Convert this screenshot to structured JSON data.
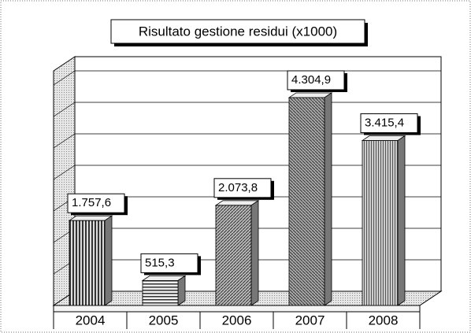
{
  "chart_data": {
    "type": "bar3d",
    "title": "Risultato gestione residui (x1000)",
    "categories": [
      "2004",
      "2005",
      "2006",
      "2007",
      "2008"
    ],
    "values": [
      1757.6,
      515.3,
      2073.8,
      4304.9,
      3415.4
    ],
    "value_labels": [
      "1.757,6",
      "515,3",
      "2.073,8",
      "4.304,9",
      "3.415,4"
    ],
    "ylim": [
      0,
      4500
    ],
    "grid": true
  }
}
